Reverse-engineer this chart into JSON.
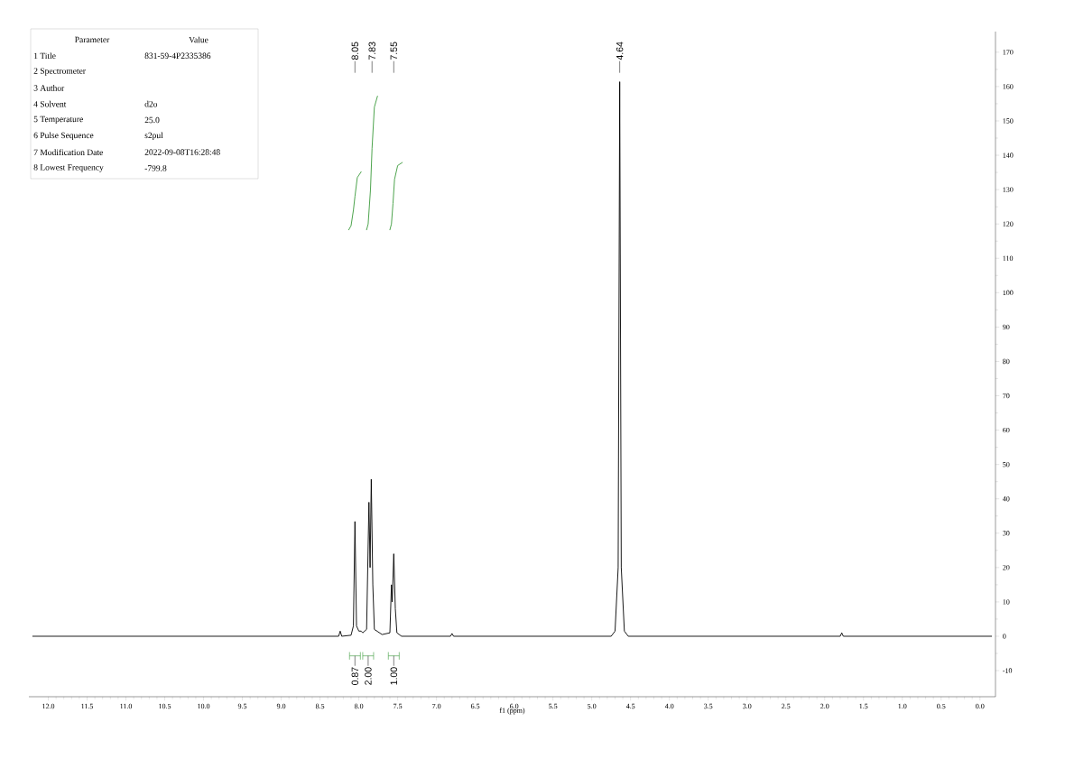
{
  "chart_data": {
    "type": "line",
    "xlabel": "f1 (ppm)",
    "xlim": [
      12.25,
      -0.2
    ],
    "ylim": [
      -17.6,
      176
    ],
    "xticks": [
      {
        "value": 12,
        "label": "12.0"
      },
      {
        "value": 11.5,
        "label": "11.5"
      },
      {
        "value": 11,
        "label": "11.0"
      },
      {
        "value": 10.5,
        "label": "10.5"
      },
      {
        "value": 10,
        "label": "10.0"
      },
      {
        "value": 9.5,
        "label": "9.5"
      },
      {
        "value": 9,
        "label": "9.0"
      },
      {
        "value": 8.5,
        "label": "8.5"
      },
      {
        "value": 8,
        "label": "8.0"
      },
      {
        "value": 7.5,
        "label": "7.5"
      },
      {
        "value": 7,
        "label": "7.0"
      },
      {
        "value": 6.5,
        "label": "6.5"
      },
      {
        "value": 6,
        "label": "6.0"
      },
      {
        "value": 5.5,
        "label": "5.5"
      },
      {
        "value": 5,
        "label": "5.0"
      },
      {
        "value": 4.5,
        "label": "4.5"
      },
      {
        "value": 4,
        "label": "4.0"
      },
      {
        "value": 3.5,
        "label": "3.5"
      },
      {
        "value": 3,
        "label": "3.0"
      },
      {
        "value": 2.5,
        "label": "2.5"
      },
      {
        "value": 2,
        "label": "2.0"
      },
      {
        "value": 1.5,
        "label": "1.5"
      },
      {
        "value": 1,
        "label": "1.0"
      },
      {
        "value": 0.5,
        "label": "0.5"
      },
      {
        "value": 0,
        "label": "0.0"
      }
    ],
    "yticks": [
      -10,
      0,
      10,
      20,
      30,
      40,
      50,
      60,
      70,
      80,
      90,
      100,
      110,
      120,
      130,
      140,
      150,
      160,
      170
    ],
    "grid": false,
    "marker": "none",
    "line_style": "solid",
    "series": [
      {
        "color": "#000000",
        "x": [
          12.2,
          8.3,
          8.26,
          8.24,
          8.22,
          8.1,
          8.07,
          8.05,
          8.03,
          8.0,
          7.97,
          7.95,
          7.9,
          7.87,
          7.855,
          7.84,
          7.82,
          7.8,
          7.7,
          7.6,
          7.58,
          7.57,
          7.55,
          7.53,
          7.51,
          7.45,
          6.82,
          6.8,
          6.78,
          4.75,
          4.7,
          4.66,
          4.64,
          4.62,
          4.58,
          4.53,
          1.8,
          1.78,
          1.76,
          -0.15
        ],
        "values": [
          0,
          0,
          0,
          1.5,
          0,
          0.3,
          3,
          33.4,
          3,
          1.5,
          1.5,
          1,
          2,
          39,
          20,
          45.7,
          15,
          2,
          0.5,
          1,
          15,
          10,
          24,
          8,
          1,
          0,
          0,
          0.8,
          0,
          0,
          1.5,
          20,
          161.4,
          20,
          1.5,
          0,
          0,
          1,
          0,
          0
        ]
      },
      {
        "color": "#3a9a3a",
        "x": [
          8.13,
          8.1,
          8.07,
          8.05,
          8.02,
          7.97
        ],
        "values": [
          118.3,
          119.5,
          124,
          128,
          133.5,
          135.2
        ]
      },
      {
        "color": "#3a9a3a",
        "x": [
          7.9,
          7.88,
          7.85,
          7.83,
          7.8,
          7.76
        ],
        "values": [
          118.3,
          120,
          130,
          142,
          154,
          157.2
        ]
      },
      {
        "color": "#3a9a3a",
        "x": [
          7.6,
          7.58,
          7.56,
          7.54,
          7.5,
          7.44
        ],
        "values": [
          118.3,
          120,
          126,
          133,
          137,
          137.9
        ]
      }
    ],
    "annotations": [
      "Parameter",
      "Value",
      "1 Title",
      "831-59-4P2335386",
      "2 Spectrometer",
      "3 Author",
      "4 Solvent",
      "d2o",
      "5 Temperature",
      "25.0",
      "6 Pulse Sequence",
      "s2pul",
      "7 Modification Date",
      "2022-09-08T16:28:48",
      "8 Lowest Frequency",
      "-799.8",
      {
        "text": "8.05",
        "x": 8.05
      },
      {
        "text": "7.83",
        "x": 7.83
      },
      {
        "text": "7.55",
        "x": 7.55
      },
      {
        "text": "4.64",
        "x": 4.64
      },
      {
        "text": "0.87",
        "x": 8.05
      },
      {
        "text": "2.00",
        "x": 7.88
      },
      {
        "text": "1.00",
        "x": 7.55
      }
    ]
  }
}
